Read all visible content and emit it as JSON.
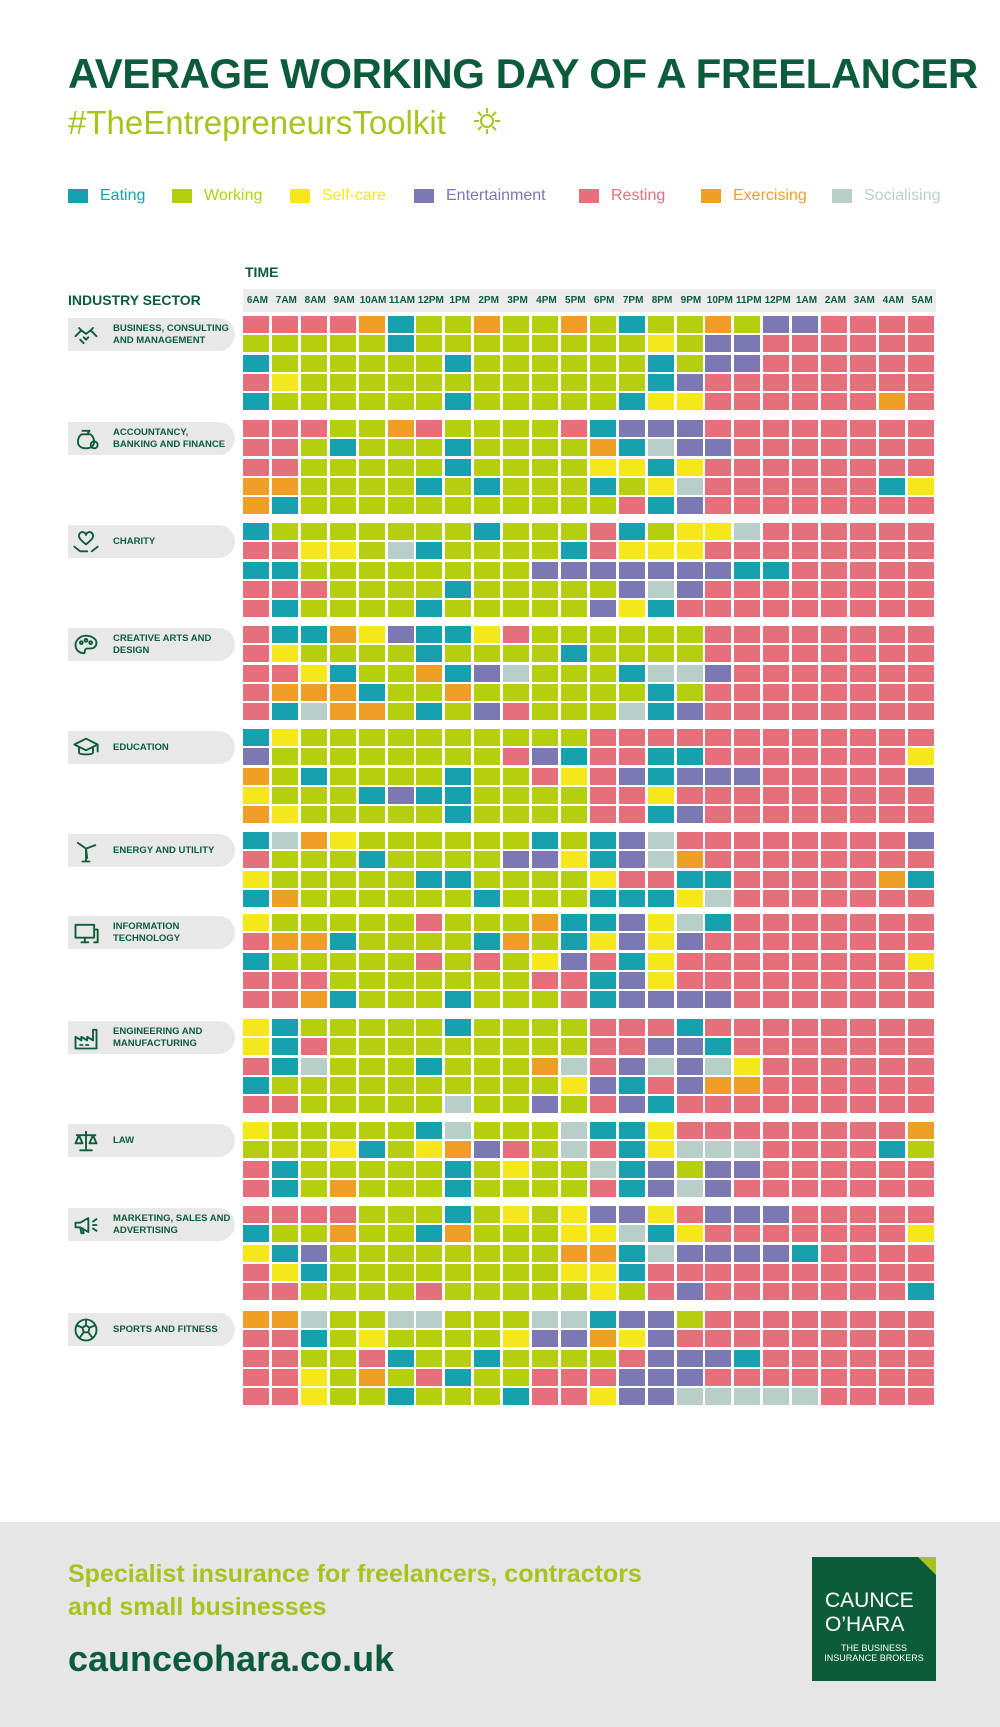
{
  "title": "AVERAGE WORKING DAY OF A FREELANCER",
  "hashtag": "#TheEntrepreneursToolkit",
  "legend": [
    {
      "label": "Eating",
      "color": "#17a0ad"
    },
    {
      "label": "Working",
      "color": "#b5cf0e"
    },
    {
      "label": "Self-care",
      "color": "#f6e71a"
    },
    {
      "label": "Entertainment",
      "color": "#7b78b3"
    },
    {
      "label": "Resting",
      "color": "#e5707b"
    },
    {
      "label": "Exercising",
      "color": "#ef9f26"
    },
    {
      "label": "Socialising",
      "color": "#b8cfc9"
    }
  ],
  "axis": {
    "time_label": "TIME",
    "sector_label": "INDUSTRY SECTOR"
  },
  "chart_data": {
    "type": "heatmap",
    "x_label": "TIME",
    "y_label": "INDUSTRY SECTOR",
    "hours": [
      "6AM",
      "7AM",
      "8AM",
      "9AM",
      "10AM",
      "11AM",
      "12PM",
      "1PM",
      "2PM",
      "3PM",
      "4PM",
      "5PM",
      "6PM",
      "7PM",
      "8PM",
      "9PM",
      "10PM",
      "11PM",
      "12PM",
      "1AM",
      "2AM",
      "3AM",
      "4AM",
      "5AM"
    ],
    "activity_codes": {
      "E": "Eating",
      "W": "Working",
      "S": "Self-care",
      "N": "Entertainment",
      "R": "Resting",
      "X": "Exercising",
      "O": "Socialising"
    },
    "sectors": [
      {
        "name": "BUSINESS, CONSULTING AND MANAGEMENT",
        "icon": "handshake-icon",
        "rows": [
          "RRRRXEWWXWWXWEWWXWNNRRRR",
          "WWWWWEWWWWWWWWSWNNRRRRRR",
          "EWWWWWWEWWWWWWEWNNRRRRRR",
          "RSWWWWWWWWWWWWENRRRRRRRR",
          "EWWWWWWEWWWWWESSRRRRRRXR"
        ]
      },
      {
        "name": "ACCOUNTANCY, BANKING AND FINANCE",
        "icon": "money-bag-icon",
        "rows": [
          "RRRWWXRWWWWRENNNRRRRRRRR",
          "RRWEWWWEWWWWXEONNRRRRRRR",
          "RRWWWWWEWWWWSSESRRRRRRRR",
          "XXWWWWEWEWWWEWSORRRRRRES",
          "XEWWWWWWWWWWWRENRRRRRRRR"
        ]
      },
      {
        "name": "CHARITY",
        "icon": "heart-hands-icon",
        "rows": [
          "EWWWWWWWEWWWREWSSORRRRRR",
          "RRSSWOEWWWWERSSSRRRRRRRR",
          "EEWWWWWWWWNNNNNNNEERRRRR",
          "RRRWWWWEWWWWWNONRRRRRRRR",
          "REWWWWEWWWWWNSERRRRRRRRR"
        ]
      },
      {
        "name": "CREATIVE ARTS AND DESIGN",
        "icon": "palette-icon",
        "rows": [
          "REEXSNEESRWWWWWWRRRRRRRR",
          "RSWWWWEWWWWEWWWWRRRRRRRR",
          "RRSEWWXENOWWWEOONRRRRRRR",
          "RXXXEWWXWWWWWWEWRRRRRRRR",
          "REOXXWEWNRWWWOENRRRRRRRR"
        ]
      },
      {
        "name": "EDUCATION",
        "icon": "graduation-cap-icon",
        "rows": [
          "ESWWWWWWWWWWRRRRRRRRRRRR",
          "NWWWWWWWWRNERREERRRRRRRS",
          "XWEWWWWEWWRSRNENNNRRRRRN",
          "SWWWENEEWWWWRRSRRRRRRRRR",
          "XSWWWWWEWWWWRRENRRRRRRRR"
        ]
      },
      {
        "name": "ENERGY AND UTILITY",
        "icon": "wind-turbine-icon",
        "rows": [
          "EOXSWWWWWWEWENORRRRRRRRN",
          "RWWWEWWWWNNSENOXRRRRRRRR",
          "SWWWWWEEWWWWSRREERRRRRXE",
          "EXWWWWWWEWWWEEESORRRRRRR"
        ]
      },
      {
        "name": "INFORMATION TECHNOLOGY",
        "icon": "computer-icon",
        "rows": [
          "SWWWWWRWWWXEENSOERRRRRRR",
          "RXXEWWWWEXWESNSNRRRRRRRR",
          "EWWWWWRWRWSNRESRRRRRRRRS",
          "RRRWWWWWWWRRENSRRRRRRRRR",
          "RRXEWWWEWWWRENNNNRRRRRRR"
        ]
      },
      {
        "name": "ENGINEERING AND MANUFACTURING",
        "icon": "factory-icon",
        "rows": [
          "SEWWWWWEWWWWRRRERRRRRRRR",
          "SERWWWWWWWWWRRNNERRRRRRR",
          "REOWWWEWWWXORNONOSRRRRRR",
          "EWWWWWWWWWWSNERNXXRRRRRR",
          "RRWWWWWOWWNWRNERRRRRRRRR"
        ]
      },
      {
        "name": "LAW",
        "icon": "scales-icon",
        "rows": [
          "SWWWWWEOWWWOEESRRRRRRRRX",
          "WWWSEWSXNRWORESOOORRRREW",
          "REWWWWWEWSWWOENWNNRRRRRR",
          "REWXWWWEWWWWRENONRRRRRRR"
        ]
      },
      {
        "name": "MARKETING, SALES AND ADVERTISING",
        "icon": "megaphone-icon",
        "rows": [
          "RRRRWWWEWSWSNNSRNNNRRRRR",
          "EWWXWWEXWWWSSOESRRRRRRRS",
          "SENWWWWWWWWXXEONNNNERRRR",
          "RSEWWWWWWWWSSERRRRRRRRRR",
          "RRWWWWRWWWWWSWRNRRRRRRRE"
        ]
      },
      {
        "name": "SPORTS AND FITNESS",
        "icon": "football-icon",
        "rows": [
          "XXOWWOOWWWOOENNWRRRRRRRR",
          "RREWSWWWWSNNXSNRRRRRRRRR",
          "RRWWREWWEWWWWRNNNERRRRRR",
          "RRSWXWREWWRRRNNNRRRRRRRR",
          "RRSWWEWWWERRSNNOOOOORRRR"
        ]
      }
    ]
  },
  "footer": {
    "tagline_line1": "Specialist insurance for freelancers, contractors",
    "tagline_line2": "and small businesses",
    "url": "caunceohara.co.uk",
    "logo_line1": "CAUNCE",
    "logo_line2": "O’HARA",
    "logo_sub1": "THE BUSINESS",
    "logo_sub2": "INSURANCE BROKERS"
  }
}
